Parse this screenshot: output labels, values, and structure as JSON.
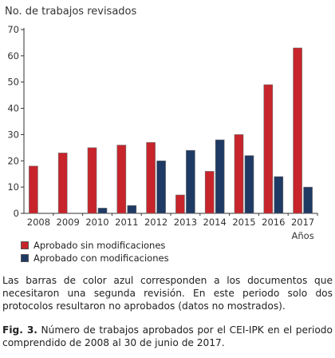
{
  "chart_data": {
    "type": "bar",
    "ylabel": "No. de trabajos revisados",
    "xlabel": "Años",
    "ylim": [
      0,
      70
    ],
    "yticks": [
      0,
      10,
      20,
      30,
      40,
      50,
      60,
      70
    ],
    "categories": [
      "2008",
      "2009",
      "2010",
      "2011",
      "2012",
      "2013",
      "2014",
      "2015",
      "2016",
      "2017"
    ],
    "series": [
      {
        "name": "Aprobado sin modificaciones",
        "color": "#c8242b",
        "values": [
          18,
          23,
          25,
          26,
          27,
          7,
          16,
          30,
          49,
          63
        ]
      },
      {
        "name": "Aprobado con modificaciones",
        "color": "#1f3a64",
        "values": [
          0,
          0,
          2,
          3,
          20,
          24,
          28,
          22,
          14,
          10
        ]
      }
    ],
    "legend": "bottom-left",
    "grid": false
  },
  "note": "Las barras de color azul corresponden a los documentos que necesitaron una segunda revisión. En este periodo solo dos protocolos resultaron no aprobados (datos no mostrados).",
  "caption": {
    "label": "Fig. 3.",
    "text": " Número de trabajos aprobados por el CEI-IPK en el periodo comprendido de 2008 al 30 de junio de 2017."
  }
}
